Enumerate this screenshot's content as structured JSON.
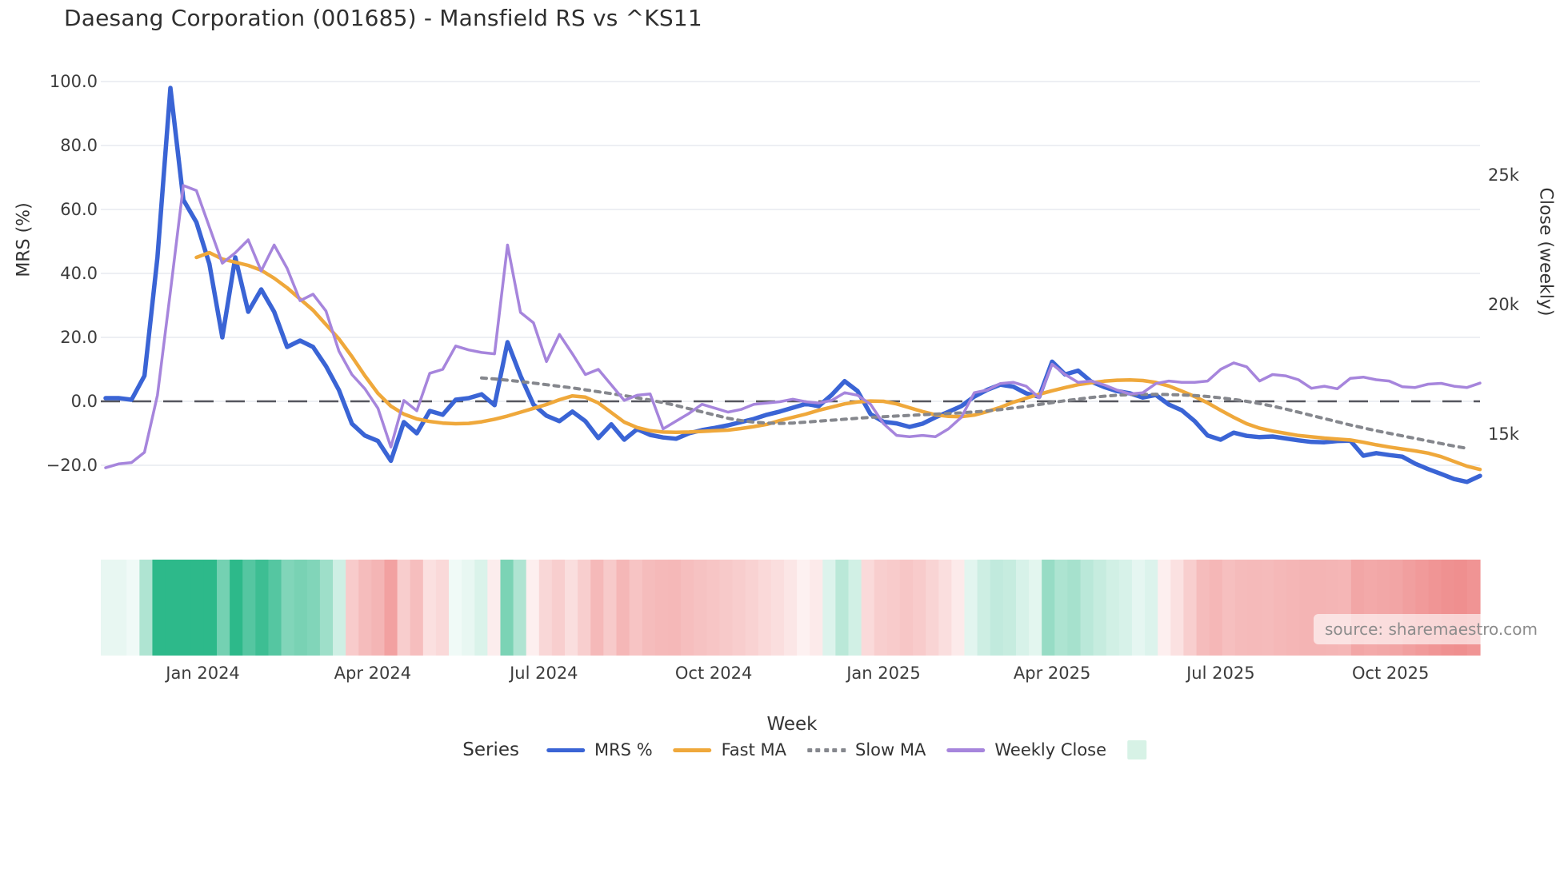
{
  "title": "Daesang Corporation (001685) - Mansfield RS vs ^KS11",
  "source_note": "source: sharemaestro.com",
  "colors": {
    "mrs": "#3a64d5",
    "fast_ma": "#efa83b",
    "slow_ma": "#85878d",
    "weekly_close": "#a685dc",
    "zero_line": "#55565e",
    "grid": "#edeff3",
    "title_text": "#2f2f2f",
    "tick_text": "#3c3c3c",
    "source_text": "#8c8c8c",
    "heat_green_full": "#2db98a",
    "heat_red_full": "#ef8f8f",
    "legend_heat_swatch": "#d7f2e6"
  },
  "legend": {
    "title": "Series"
  },
  "chart_data": {
    "type": "line",
    "title": "Daesang Corporation (001685) - Mansfield RS vs ^KS11",
    "xlabel": "Week",
    "x_ticks": [
      {
        "label": "Jan 2024",
        "week": 7.5
      },
      {
        "label": "Apr 2024",
        "week": 20.6
      },
      {
        "label": "Jul 2024",
        "week": 33.8
      },
      {
        "label": "Oct 2024",
        "week": 46.9
      },
      {
        "label": "Jan 2025",
        "week": 60.0
      },
      {
        "label": "Apr 2025",
        "week": 73.0
      },
      {
        "label": "Jul 2025",
        "week": 86.0
      },
      {
        "label": "Oct 2025",
        "week": 99.1
      }
    ],
    "weeks_total": 106,
    "left_axis": {
      "label": "MRS (%)",
      "ticks": [
        {
          "label": "100.0",
          "value": 100
        },
        {
          "label": "80.0",
          "value": 80
        },
        {
          "label": "60.0",
          "value": 60
        },
        {
          "label": "40.0",
          "value": 40
        },
        {
          "label": "20.0",
          "value": 20
        },
        {
          "label": "0.0",
          "value": 0
        },
        {
          "label": "−20.0",
          "value": -20
        }
      ],
      "zero_dashed_line": 0
    },
    "right_axis": {
      "label": "Close (weekly)",
      "ticks": [
        {
          "label": "25k",
          "value": 25
        },
        {
          "label": "20k",
          "value": 20
        },
        {
          "label": "15k",
          "value": 15
        }
      ],
      "unit": "k"
    },
    "legend_position": "bottom",
    "grid": "horizontal",
    "series": [
      {
        "name": "MRS %",
        "axis": "left",
        "style": "solid",
        "stroke_width": 5.5,
        "start_week": 0,
        "values": [
          1,
          1,
          0.5,
          8,
          45,
          98,
          63,
          56,
          43,
          20,
          45,
          28,
          35,
          28,
          17,
          19,
          17,
          11,
          3.5,
          -7,
          -10.7,
          -12.4,
          -18.6,
          -6.5,
          -10,
          -3,
          -4.2,
          0.5,
          1,
          2.2,
          -1.2,
          18.5,
          8,
          -1,
          -4.5,
          -6.2,
          -3.2,
          -6.2,
          -11.5,
          -7.2,
          -12,
          -8.7,
          -10.5,
          -11.3,
          -11.7,
          -10,
          -9,
          -8.3,
          -7.5,
          -6.5,
          -5.5,
          -4.2,
          -3.2,
          -2,
          -0.8,
          -1.5,
          2,
          6.3,
          3.2,
          -4,
          -6.4,
          -6.9,
          -8,
          -7,
          -5,
          -3.3,
          -1.5,
          1.5,
          3.6,
          5.2,
          4.6,
          2.5,
          1.4,
          12.4,
          8.4,
          9.6,
          6.2,
          4.5,
          3.2,
          2.5,
          1.2,
          2,
          -1,
          -2.8,
          -6.2,
          -10.7,
          -12,
          -9.8,
          -10.8,
          -11.2,
          -11,
          -11.6,
          -12.2,
          -12.7,
          -12.8,
          -12.4,
          -12.3,
          -17,
          -16.2,
          -16.8,
          -17.3,
          -19.5,
          -21.2,
          -22.7,
          -24.3,
          -25.2,
          -23.3
        ]
      },
      {
        "name": "Fast MA",
        "axis": "left",
        "style": "solid",
        "stroke_width": 4.5,
        "start_week": 7,
        "values": [
          45,
          46.5,
          44.5,
          43.5,
          42.5,
          41,
          38.5,
          35.5,
          32,
          28.5,
          24,
          19.5,
          14,
          8,
          2.5,
          -1.5,
          -4,
          -5.5,
          -6.3,
          -6.8,
          -7,
          -6.9,
          -6.4,
          -5.6,
          -4.6,
          -3.4,
          -2.2,
          -1,
          0.5,
          1.7,
          1.3,
          -0.5,
          -3.5,
          -6.5,
          -8.2,
          -9.2,
          -9.6,
          -9.7,
          -9.6,
          -9.4,
          -9.2,
          -9,
          -8.5,
          -7.9,
          -7.2,
          -6,
          -5,
          -4,
          -2.8,
          -1.8,
          -0.8,
          -0.2,
          0.1,
          0,
          -0.8,
          -2,
          -3.2,
          -4.2,
          -4.7,
          -4.8,
          -4.3,
          -3.2,
          -1.9,
          -0.3,
          1,
          2.2,
          3.3,
          4.3,
          5.2,
          5.8,
          6.3,
          6.6,
          6.7,
          6.5,
          5.9,
          4.8,
          3.2,
          1.5,
          -0.5,
          -2.8,
          -5,
          -7,
          -8.4,
          -9.3,
          -10,
          -10.7,
          -11.1,
          -11.5,
          -11.8,
          -12.1,
          -12.8,
          -13.6,
          -14.3,
          -14.9,
          -15.5,
          -16.2,
          -17.3,
          -18.8,
          -20.3,
          -21.3
        ]
      },
      {
        "name": "Slow MA",
        "axis": "left",
        "style": "dotted",
        "stroke_width": 4,
        "start_week": 29,
        "values": [
          7.3,
          7,
          6.6,
          6.2,
          5.7,
          5.2,
          4.7,
          4.2,
          3.6,
          3,
          2.4,
          1.8,
          1.1,
          0.4,
          -0.4,
          -1.3,
          -2.3,
          -3.3,
          -4.3,
          -5.3,
          -6,
          -6.5,
          -6.8,
          -6.9,
          -6.8,
          -6.5,
          -6.2,
          -5.9,
          -5.6,
          -5.3,
          -5,
          -4.8,
          -4.6,
          -4.4,
          -4.2,
          -4,
          -3.8,
          -3.6,
          -3.3,
          -3,
          -2.6,
          -2.1,
          -1.6,
          -1,
          -0.4,
          0.2,
          0.7,
          1.2,
          1.6,
          1.9,
          2.1,
          2.2,
          2.2,
          2.1,
          2,
          1.8,
          1.5,
          1.1,
          0.6,
          0,
          -0.7,
          -1.5,
          -2.4,
          -3.4,
          -4.4,
          -5.4,
          -6.4,
          -7.4,
          -8.3,
          -9.2,
          -10,
          -10.8,
          -11.6,
          -12.4,
          -13.2,
          -14,
          -14.7
        ]
      },
      {
        "name": "Weekly Close",
        "axis": "right",
        "style": "solid",
        "stroke_width": 3.5,
        "start_week": 0,
        "values": [
          13.7,
          13.85,
          13.9,
          14.3,
          16.5,
          20.5,
          24.6,
          24.4,
          23,
          21.6,
          22,
          22.5,
          21.3,
          22.3,
          21.4,
          20.15,
          20.4,
          19.75,
          18.2,
          17.3,
          16.75,
          16,
          14.5,
          16.3,
          15.9,
          17.35,
          17.5,
          18.4,
          18.25,
          18.15,
          18.1,
          22.3,
          19.7,
          19.3,
          17.8,
          18.85,
          18.1,
          17.3,
          17.5,
          16.9,
          16.3,
          16.5,
          16.55,
          15.2,
          15.5,
          15.8,
          16.15,
          16,
          15.85,
          15.95,
          16.15,
          16.2,
          16.25,
          16.35,
          16.25,
          16.2,
          16.3,
          16.6,
          16.5,
          16.15,
          15.4,
          14.95,
          14.9,
          14.95,
          14.9,
          15.2,
          15.65,
          16.6,
          16.7,
          16.95,
          17,
          16.85,
          16.4,
          17.7,
          17.3,
          17,
          17.05,
          16.9,
          16.7,
          16.55,
          16.6,
          16.95,
          17.05,
          17,
          17,
          17.05,
          17.5,
          17.75,
          17.6,
          17.05,
          17.3,
          17.25,
          17.1,
          16.77,
          16.85,
          16.75,
          17.15,
          17.2,
          17.1,
          17.05,
          16.83,
          16.8,
          16.93,
          16.96,
          16.85,
          16.8,
          16.97
        ]
      }
    ],
    "heatmap": {
      "description": "weekly strip colored from MRS % values",
      "source_series": "MRS %",
      "green_cap": 40,
      "red_cap": 25,
      "gamma": 0.6
    }
  }
}
